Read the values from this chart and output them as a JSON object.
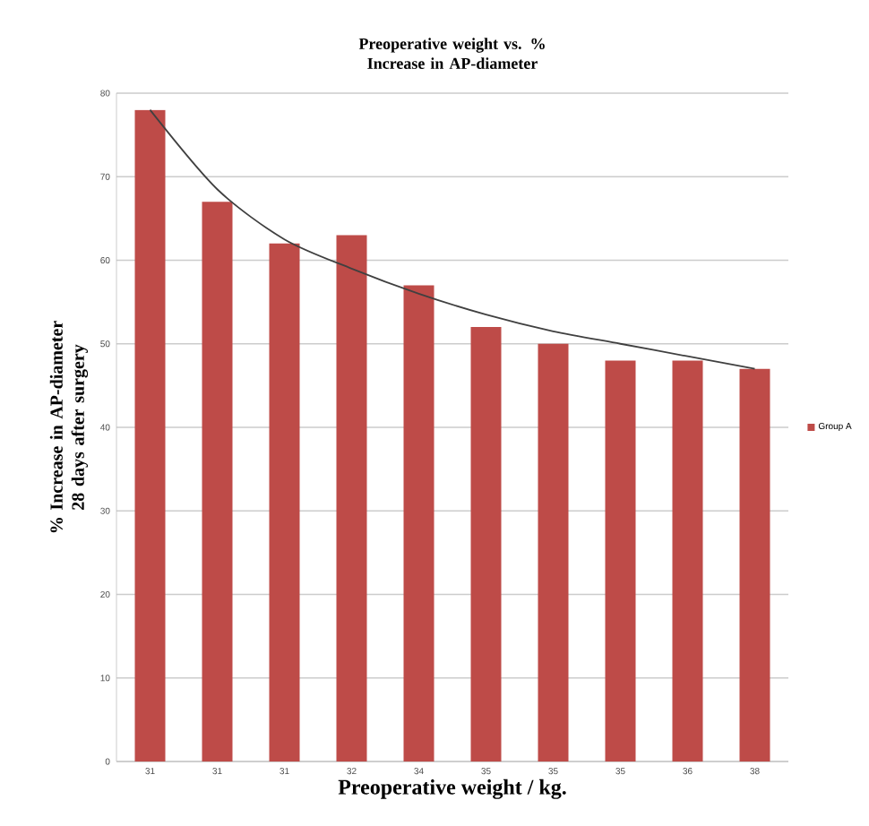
{
  "chart_data": {
    "type": "bar",
    "title": "Preoperative weight vs. % Increase in AP-diameter",
    "xlabel": "Preoperative weight / kg.",
    "ylabel": "% Increase in AP-diameter 28 days after surgery",
    "categories": [
      "31",
      "31",
      "31",
      "32",
      "34",
      "35",
      "35",
      "35",
      "36",
      "38"
    ],
    "series": [
      {
        "name": "Group A",
        "color": "#be4b48",
        "values": [
          78,
          67,
          62,
          63,
          57,
          52,
          50,
          48,
          48,
          47
        ]
      },
      {
        "type": "line",
        "color": "#404040",
        "values": [
          78,
          68.5,
          62.5,
          59,
          56,
          53.5,
          51.5,
          50,
          48.5,
          47
        ]
      }
    ],
    "ylim": [
      0,
      80
    ],
    "yticks": [
      0,
      10,
      20,
      30,
      40,
      50,
      60,
      70,
      80
    ],
    "grid": "y",
    "legend": "right"
  }
}
